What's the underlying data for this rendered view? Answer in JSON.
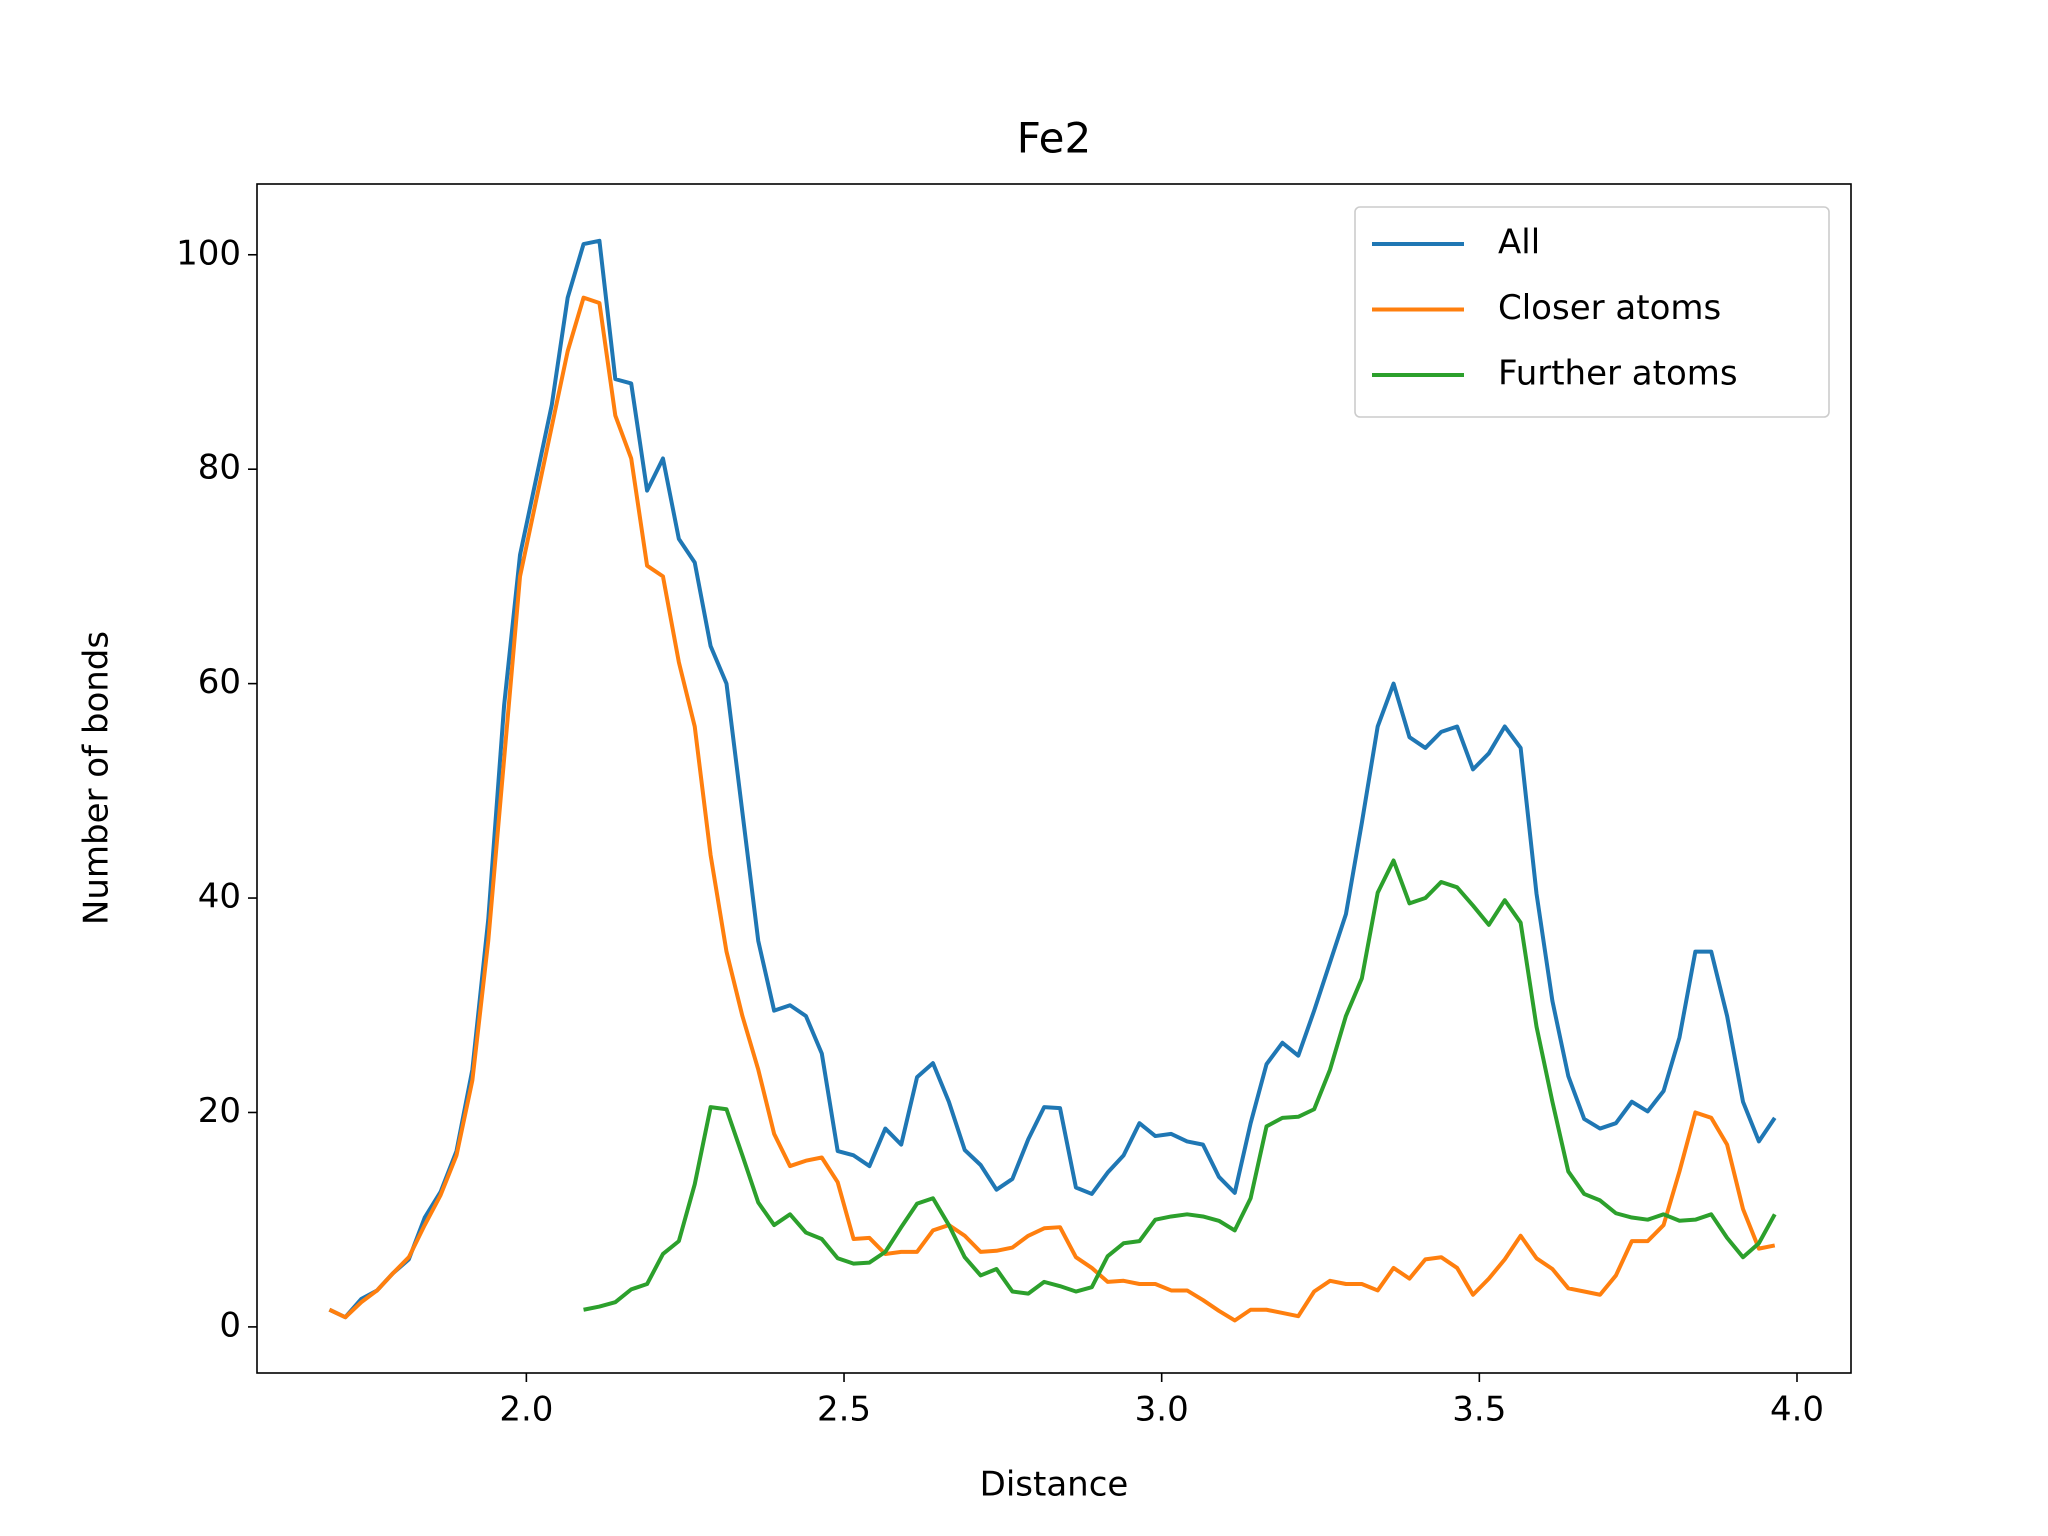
{
  "chart_data": {
    "type": "line",
    "title": "Fe2",
    "x_label": "Distance",
    "y_label": "Number of bonds",
    "x": [
      1.69,
      1.715,
      1.74,
      1.765,
      1.79,
      1.815,
      1.84,
      1.865,
      1.89,
      1.915,
      1.94,
      1.965,
      1.99,
      2.015,
      2.04,
      2.065,
      2.09,
      2.115,
      2.14,
      2.165,
      2.19,
      2.215,
      2.24,
      2.265,
      2.29,
      2.315,
      2.34,
      2.365,
      2.39,
      2.415,
      2.44,
      2.465,
      2.49,
      2.515,
      2.54,
      2.565,
      2.59,
      2.615,
      2.64,
      2.665,
      2.69,
      2.715,
      2.74,
      2.765,
      2.79,
      2.815,
      2.84,
      2.865,
      2.89,
      2.915,
      2.94,
      2.965,
      2.99,
      3.015,
      3.04,
      3.065,
      3.09,
      3.115,
      3.14,
      3.165,
      3.19,
      3.215,
      3.24,
      3.265,
      3.29,
      3.315,
      3.34,
      3.365,
      3.39,
      3.415,
      3.44,
      3.465,
      3.49,
      3.515,
      3.54,
      3.565,
      3.59,
      3.615,
      3.64,
      3.665,
      3.69,
      3.715,
      3.74,
      3.765,
      3.79,
      3.815,
      3.84,
      3.865,
      3.89,
      3.915,
      3.94,
      3.965
    ],
    "series": [
      {
        "name": "All",
        "color": "#1f77b4",
        "values": [
          1.6,
          0.9,
          2.6,
          3.4,
          5,
          6.3,
          10.2,
          12.6,
          16.4,
          24,
          38,
          58,
          72,
          79,
          86,
          96,
          101,
          101.3,
          88.4,
          88,
          78,
          81,
          73.5,
          71.3,
          63.5,
          60,
          48,
          36,
          29.5,
          30,
          29,
          25.5,
          16.4,
          16,
          15,
          18.5,
          17,
          23.3,
          24.6,
          21,
          16.5,
          15.1,
          12.8,
          13.8,
          17.5,
          20.5,
          20.4,
          13,
          12.4,
          14.4,
          16,
          19,
          17.8,
          18,
          17.3,
          17,
          14,
          12.5,
          19,
          24.5,
          26.5,
          25.3,
          29.5,
          34,
          38.5,
          47,
          56,
          60,
          55,
          54,
          55.5,
          56,
          52,
          53.5,
          56,
          54,
          40.4,
          30.4,
          23.4,
          19.4,
          18.5,
          19,
          21,
          20.1,
          22,
          27,
          35,
          35,
          29,
          21,
          17.3,
          19.5
        ]
      },
      {
        "name": "Closer atoms",
        "color": "#ff7f0e",
        "values": [
          1.6,
          0.9,
          2.3,
          3.4,
          5,
          6.5,
          9.5,
          12.3,
          16,
          23,
          36,
          53,
          70,
          77,
          84,
          91,
          96,
          95.5,
          85,
          81,
          71,
          70,
          62,
          56,
          44,
          35,
          29,
          24,
          18,
          15,
          15.5,
          15.8,
          13.5,
          8.2,
          8.3,
          6.8,
          7,
          7,
          9,
          9.5,
          8.5,
          7,
          7.1,
          7.4,
          8.5,
          9.2,
          9.3,
          6.5,
          5.5,
          4.2,
          4.3,
          4,
          4,
          3.4,
          3.4,
          2.5,
          1.5,
          0.6,
          1.6,
          1.6,
          1.3,
          1,
          3.3,
          4.3,
          4,
          4,
          3.4,
          5.5,
          4.5,
          6.3,
          6.5,
          5.5,
          3,
          4.5,
          6.3,
          8.5,
          6.4,
          5.4,
          3.6,
          3.3,
          3,
          4.8,
          8,
          8,
          9.5,
          14.5,
          20,
          19.5,
          17,
          11,
          7.3,
          7.6
        ]
      },
      {
        "name": "Further atoms",
        "color": "#2ca02c",
        "values": [
          null,
          null,
          null,
          null,
          null,
          null,
          null,
          null,
          null,
          null,
          null,
          null,
          null,
          null,
          null,
          null,
          1.6,
          1.9,
          2.3,
          3.5,
          4,
          6.8,
          8,
          13.3,
          20.5,
          20.3,
          16,
          11.6,
          9.5,
          10.5,
          8.8,
          8.2,
          6.4,
          5.9,
          6,
          7,
          9.3,
          11.5,
          12,
          9.5,
          6.5,
          4.8,
          5.4,
          3.3,
          3.1,
          4.2,
          3.8,
          3.3,
          3.7,
          6.6,
          7.8,
          8,
          10,
          10.3,
          10.5,
          10.3,
          9.9,
          9,
          12,
          18.7,
          19.5,
          19.6,
          20.3,
          24,
          29,
          32.5,
          40.5,
          43.5,
          39.5,
          40,
          41.5,
          41,
          39.3,
          37.5,
          39.8,
          37.7,
          28,
          21,
          14.5,
          12.4,
          11.8,
          10.6,
          10.2,
          10,
          10.5,
          9.9,
          10,
          10.5,
          8.3,
          6.5,
          7.8,
          10.5
        ]
      }
    ],
    "xlim": [
      1.576,
      4.085
    ],
    "ylim": [
      -4.3,
      106.6
    ],
    "xticks": [
      {
        "value": 2,
        "label": "2.0"
      },
      2.5,
      {
        "value": 3,
        "label": "3.0"
      },
      3.5,
      {
        "value": 4,
        "label": "4.0"
      }
    ],
    "yticks": [
      0,
      20,
      40,
      60,
      80,
      100
    ],
    "grid": false,
    "legend": "upper right"
  }
}
